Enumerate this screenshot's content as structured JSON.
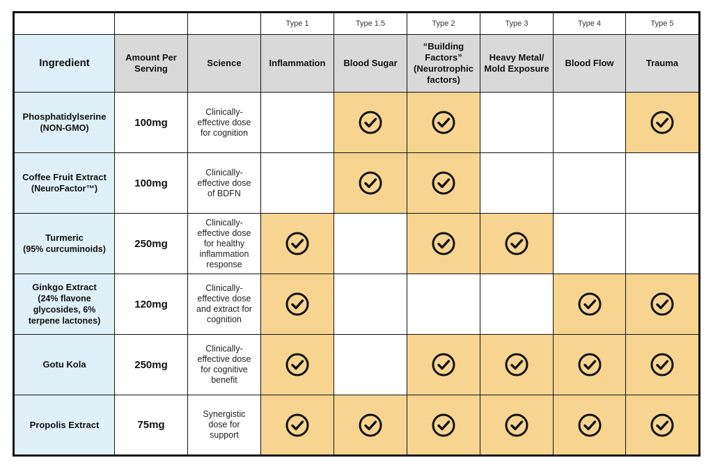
{
  "table": {
    "type_row": [
      "Type 1",
      "Type 1.5",
      "Type 2",
      "Type 3",
      "Type 4",
      "Type 5"
    ],
    "header": [
      "Ingredient",
      "Amount Per Serving",
      "Science",
      "Inflammation",
      "Blood Sugar",
      "“Building Factors” (Neurotrophic factors)",
      "Heavy Metal/ Mold Exposure",
      "Blood Flow",
      "Trauma"
    ],
    "rows": [
      {
        "ingredient": "Phosphatidylserine",
        "detail": "(NON-GMO)",
        "amount": "100mg",
        "science": "Clinically-effective dose for cognition",
        "checks": [
          false,
          true,
          true,
          false,
          false,
          true
        ]
      },
      {
        "ingredient": "Coffee Fruit Extract",
        "detail": "(NeuroFactor™)",
        "amount": "100mg",
        "science": "Clinically-effective dose of BDFN",
        "checks": [
          false,
          true,
          true,
          false,
          false,
          false
        ]
      },
      {
        "ingredient": "Turmeric",
        "detail": "(95% curcuminoids)",
        "amount": "250mg",
        "science": "Clinically-effective dose for healthy inflammation response",
        "checks": [
          true,
          false,
          true,
          true,
          false,
          false
        ]
      },
      {
        "ingredient": "Ginkgo Extract",
        "detail": "(24% flavone glycosides, 6% terpene lactones)",
        "amount": "120mg",
        "science": "Clinically-effective dose and extract for cognition",
        "checks": [
          true,
          false,
          false,
          false,
          true,
          true
        ]
      },
      {
        "ingredient": "Gotu Kola",
        "amount": "250mg",
        "science": "Clinically-effective dose for cognitive benefit",
        "checks": [
          true,
          false,
          true,
          true,
          true,
          true
        ]
      },
      {
        "ingredient": "Propolis Extract",
        "amount": "75mg",
        "science": "Synergistic dose for support",
        "checks": [
          true,
          true,
          true,
          true,
          true,
          true
        ]
      }
    ]
  }
}
